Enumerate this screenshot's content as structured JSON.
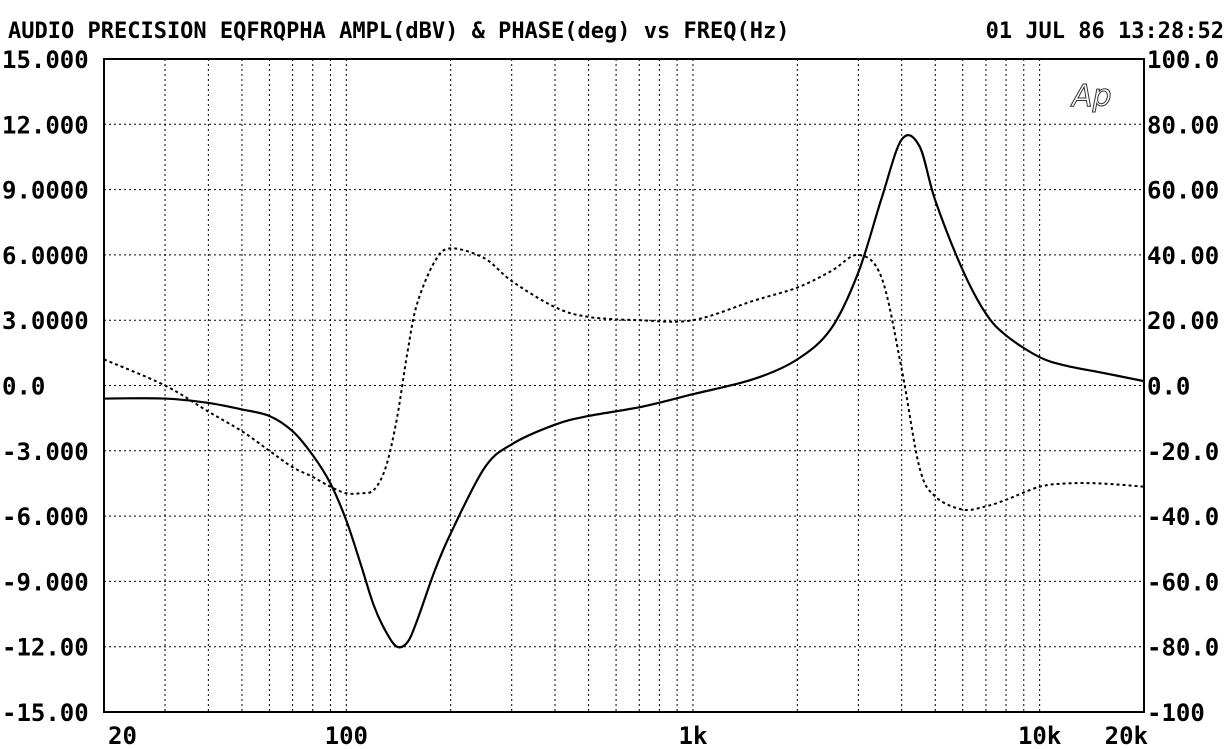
{
  "header": {
    "title": "AUDIO PRECISION EQFRQPHA AMPL(dBV) & PHASE(deg) vs FREQ(Hz)",
    "timestamp": "01 JUL 86 13:28:52"
  },
  "logo_text": "Ap",
  "chart_data": {
    "type": "line",
    "title": "AUDIO PRECISION EQFRQPHA AMPL(dBV) & PHASE(deg) vs FREQ(Hz)",
    "x_scale": "log",
    "xlim": [
      20,
      20000
    ],
    "ylim_left": [
      -15,
      15
    ],
    "ylim_right": [
      -100,
      100
    ],
    "grid": true,
    "x_ticks": [
      {
        "value": 20,
        "label": "20"
      },
      {
        "value": 100,
        "label": "100"
      },
      {
        "value": 1000,
        "label": "1k"
      },
      {
        "value": 10000,
        "label": "10k"
      },
      {
        "value": 20000,
        "label": "20k"
      }
    ],
    "y_left_ticks": [
      {
        "value": 15,
        "label": "15.000"
      },
      {
        "value": 12,
        "label": "12.000"
      },
      {
        "value": 9,
        "label": "9.0000"
      },
      {
        "value": 6,
        "label": "6.0000"
      },
      {
        "value": 3,
        "label": "3.0000"
      },
      {
        "value": 0,
        "label": "0.0"
      },
      {
        "value": -3,
        "label": "-3.000"
      },
      {
        "value": -6,
        "label": "-6.000"
      },
      {
        "value": -9,
        "label": "-9.000"
      },
      {
        "value": -12,
        "label": "-12.00"
      },
      {
        "value": -15,
        "label": "-15.00"
      }
    ],
    "y_right_ticks": [
      {
        "value": 100,
        "label": "100.0"
      },
      {
        "value": 80,
        "label": "80.00"
      },
      {
        "value": 60,
        "label": "60.00"
      },
      {
        "value": 40,
        "label": "40.00"
      },
      {
        "value": 20,
        "label": "20.00"
      },
      {
        "value": 0,
        "label": "0.0"
      },
      {
        "value": -20,
        "label": "-20.0"
      },
      {
        "value": -40,
        "label": "-40.0"
      },
      {
        "value": -60,
        "label": "-60.0"
      },
      {
        "value": -80,
        "label": "-80.0"
      },
      {
        "value": -100,
        "label": "-100"
      }
    ],
    "series": [
      {
        "axis": "left",
        "style": "solid",
        "x": [
          20,
          30,
          40,
          50,
          60,
          70,
          80,
          90,
          100,
          110,
          120,
          130,
          140,
          150,
          160,
          180,
          200,
          250,
          300,
          400,
          500,
          700,
          1000,
          1500,
          2000,
          2500,
          3000,
          3500,
          4000,
          4500,
          5000,
          6000,
          7000,
          8000,
          10000,
          12000,
          15000,
          20000
        ],
        "y": [
          -0.6,
          -0.6,
          -0.8,
          -1.1,
          -1.4,
          -2.1,
          -3.2,
          -4.5,
          -6.2,
          -8.2,
          -10.1,
          -11.3,
          -12.0,
          -11.8,
          -10.8,
          -8.5,
          -6.8,
          -3.8,
          -2.7,
          -1.8,
          -1.4,
          -1.0,
          -0.4,
          0.3,
          1.2,
          2.6,
          5.2,
          8.6,
          11.3,
          11.0,
          8.5,
          5.3,
          3.3,
          2.3,
          1.3,
          0.9,
          0.6,
          0.2
        ]
      },
      {
        "axis": "right",
        "style": "dotted",
        "x": [
          20,
          30,
          40,
          50,
          60,
          70,
          80,
          90,
          100,
          110,
          120,
          130,
          140,
          150,
          160,
          180,
          200,
          250,
          300,
          400,
          500,
          700,
          1000,
          1500,
          2000,
          2500,
          3000,
          3500,
          4000,
          4500,
          5000,
          6000,
          7000,
          8000,
          10000,
          12000,
          15000,
          20000
        ],
        "y": [
          8,
          0,
          -8,
          -14,
          -20,
          -25,
          -28,
          -31,
          -33,
          -33,
          -32,
          -25,
          -10,
          10,
          25,
          38,
          42,
          39,
          32,
          24,
          21,
          20,
          20,
          26,
          30,
          35,
          40,
          33,
          5,
          -25,
          -34,
          -38,
          -37,
          -35,
          -31,
          -30,
          -30,
          -31
        ]
      }
    ]
  }
}
